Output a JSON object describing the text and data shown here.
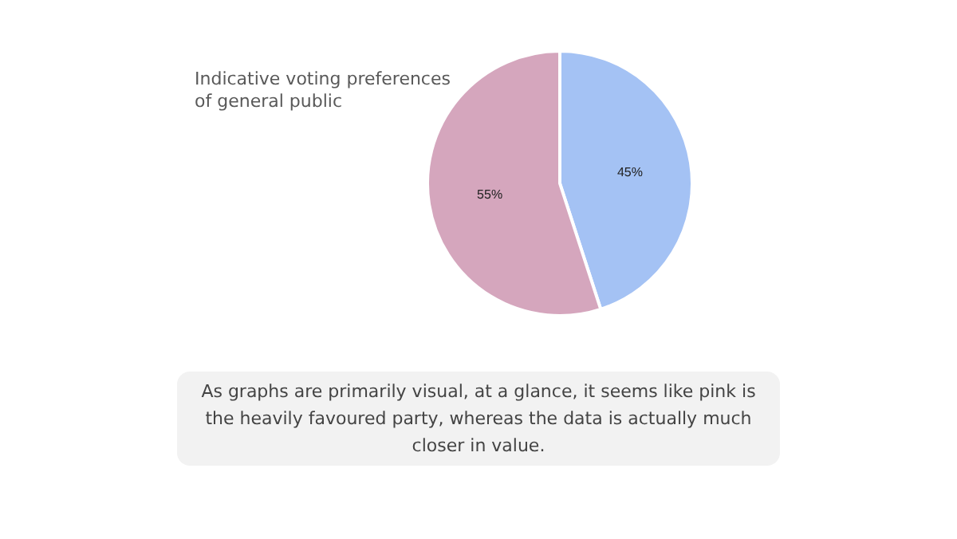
{
  "chart_data": {
    "type": "pie",
    "title": "Indicative voting preferences of general public",
    "categories": [
      null,
      null
    ],
    "values": [
      45,
      55
    ],
    "colors": [
      "#a4c2f4",
      "#d5a6bd"
    ],
    "value_labels": [
      "45%",
      "55%"
    ],
    "annotations": [
      "As graphs are primarily visual, at a glance, it seems like pink is the heavily favoured party, whereas the data is actually much closer in value."
    ]
  }
}
